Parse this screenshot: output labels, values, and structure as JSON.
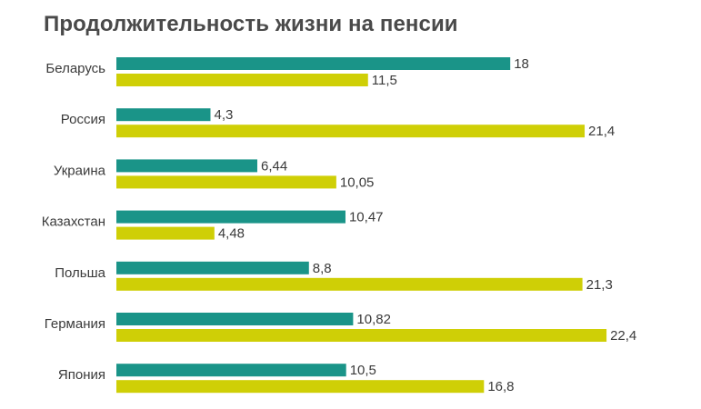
{
  "title": "Продолжительность жизни на пенсии",
  "colors": {
    "series1": "#1a9488",
    "series2": "#cfcf06",
    "text": "#3a3a3a"
  },
  "chart_data": {
    "type": "bar",
    "orientation": "horizontal",
    "title": "Продолжительность жизни на пенсии",
    "categories": [
      "Беларусь",
      "Россия",
      "Украина",
      "Казахстан",
      "Польша",
      "Германия",
      "Япония"
    ],
    "series": [
      {
        "color": "#1a9488",
        "values": [
          18,
          4.3,
          6.44,
          10.47,
          8.8,
          10.82,
          10.5
        ],
        "labels": [
          "18",
          "4,3",
          "6,44",
          "10,47",
          "8,8",
          "10,82",
          "10,5"
        ]
      },
      {
        "color": "#cfcf06",
        "values": [
          11.5,
          21.4,
          10.05,
          4.48,
          21.3,
          22.4,
          16.8
        ],
        "labels": [
          "11,5",
          "21,4",
          "10,05",
          "4,48",
          "21,3",
          "22,4",
          "16,8"
        ]
      }
    ],
    "xlim": [
      0,
      24.1
    ],
    "grid": false,
    "legend": "none"
  }
}
